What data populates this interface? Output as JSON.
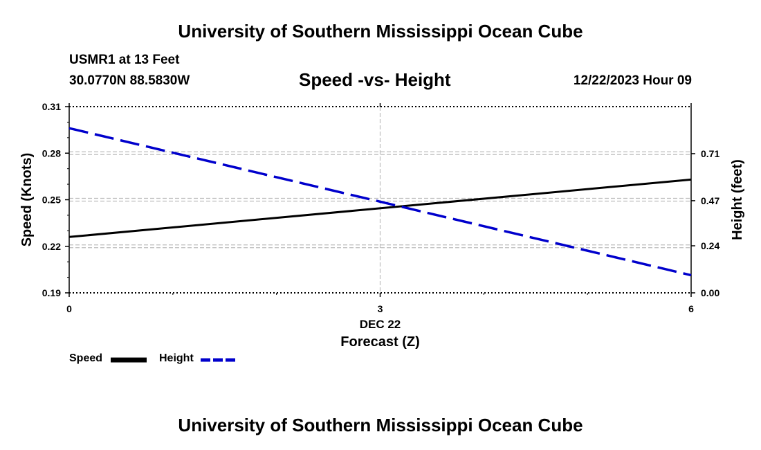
{
  "header": {
    "title": "University of Southern Mississippi Ocean Cube",
    "station": "USMR1 at 13 Feet",
    "coords": "30.0770N  88.5830W",
    "subtitle": "Speed -vs- Height",
    "datetime": "12/22/2023 Hour 09"
  },
  "footer": {
    "title": "University of Southern Mississippi Ocean Cube"
  },
  "chart_data": {
    "type": "line",
    "title": "Speed -vs- Height",
    "xlabel": "Forecast (Z)",
    "x_date_label": "DEC 22",
    "x": [
      0,
      6
    ],
    "xlim": [
      0,
      6
    ],
    "x_ticks": [
      "0",
      "3",
      "6"
    ],
    "ylabel_left": "Speed (Knots)",
    "ylim_left": [
      0.19,
      0.31
    ],
    "y_ticks_left": [
      "0.19",
      "0.22",
      "0.25",
      "0.28",
      "0.31"
    ],
    "ylabel_right": "Height (feet)",
    "ylim_right": [
      0.0,
      0.95
    ],
    "y_ticks_right": [
      "0.00",
      "0.24",
      "0.47",
      "0.71"
    ],
    "y_ticks_right_values": [
      0.0,
      0.24,
      0.47,
      0.71
    ],
    "grid": true,
    "series": [
      {
        "name": "Speed",
        "axis": "left",
        "color": "#000000",
        "style": "solid",
        "values": [
          0.226,
          0.263
        ]
      },
      {
        "name": "Height",
        "axis": "right",
        "color": "#0000cc",
        "style": "dashed",
        "values": [
          0.84,
          0.09
        ]
      }
    ],
    "legend": [
      "Speed",
      "Height"
    ]
  }
}
